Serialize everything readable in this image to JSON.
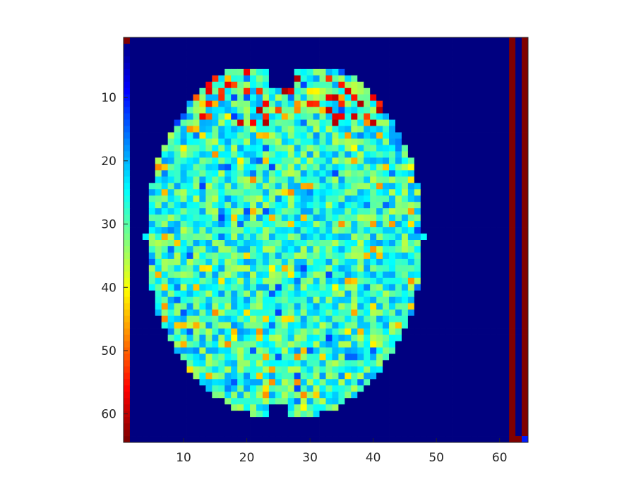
{
  "chart_data": {
    "type": "heatmap",
    "title": "",
    "xlabel": "",
    "ylabel": "",
    "xlim": [
      0.5,
      64.5
    ],
    "ylim": [
      0.5,
      64.5
    ],
    "y_reversed": true,
    "grid": false,
    "colormap": "jet",
    "x_ticks": [
      10,
      20,
      30,
      40,
      50,
      60
    ],
    "y_ticks": [
      10,
      20,
      30,
      40,
      50,
      60
    ],
    "x_tick_labels": [
      "10",
      "20",
      "30",
      "40",
      "50",
      "60"
    ],
    "y_tick_labels": [
      "10",
      "20",
      "30",
      "40",
      "50",
      "60"
    ],
    "matrix_size": [
      64,
      64
    ],
    "description_of_values": {
      "background": "min (dark blue)",
      "column_1": "colormap ramp rows 1-64 (low→high)",
      "column_62": "max (dark red)",
      "column_64": "max (dark red)",
      "brain_region": "mid-range values (cyan/green/yellow) with high (red) spots at frontal area"
    },
    "colors": {
      "axis": "#262626",
      "low": "#00008f",
      "high": "#800000"
    }
  }
}
